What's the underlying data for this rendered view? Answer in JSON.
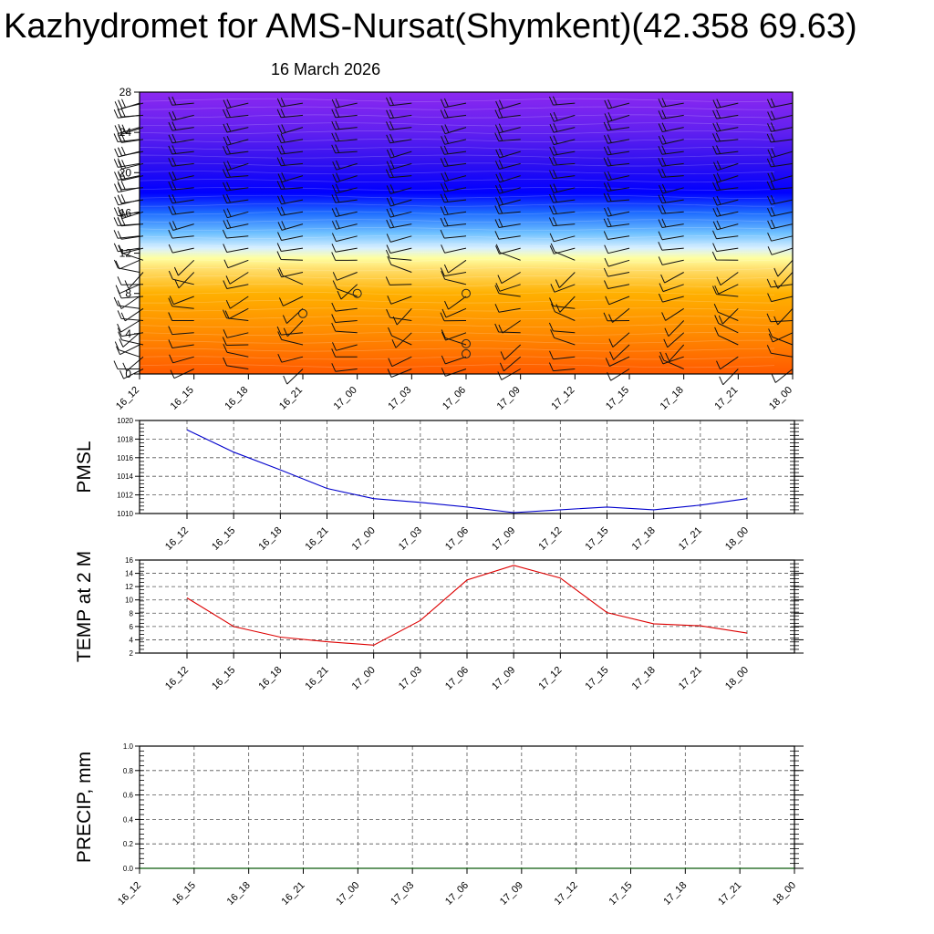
{
  "title": "Kazhydromet for AMS-Nursat(Shymkent)(42.358 69.63)",
  "subtitle": "16 March 2026",
  "colors": {
    "pmsl_line": "#0000cc",
    "temp_line": "#dd0000",
    "precip_line": "#006400"
  },
  "chart_data": [
    {
      "type": "heatmap",
      "name": "cross-section",
      "x": [
        "16_12",
        "16_15",
        "16_18",
        "16_21",
        "17_00",
        "17_03",
        "17_06",
        "17_09",
        "17_12",
        "17_15",
        "17_18",
        "17_21",
        "18_00"
      ],
      "y_ticks": [
        0,
        4,
        8,
        12,
        16,
        20,
        24,
        28
      ],
      "ylim": [
        0,
        28
      ],
      "gradient_stops": [
        {
          "level": 0,
          "color": "#ff5a00"
        },
        {
          "level": 4,
          "color": "#ff8a00"
        },
        {
          "level": 8,
          "color": "#ffb000"
        },
        {
          "level": 10.5,
          "color": "#ffe070"
        },
        {
          "level": 11.5,
          "color": "#ffffa0"
        },
        {
          "level": 12.5,
          "color": "#d8f0ff"
        },
        {
          "level": 14,
          "color": "#6ec0ff"
        },
        {
          "level": 16,
          "color": "#1e6cff"
        },
        {
          "level": 18,
          "color": "#0000ff"
        },
        {
          "level": 21,
          "color": "#3010f0"
        },
        {
          "level": 24,
          "color": "#6020f0"
        },
        {
          "level": 28,
          "color": "#8c28f0"
        }
      ],
      "calm_markers": [
        {
          "x": "16_21",
          "y": 6
        },
        {
          "x": "17_00",
          "y": 8
        },
        {
          "x": "17_06",
          "y": 8
        },
        {
          "x": "17_06",
          "y": 3
        },
        {
          "x": "17_06",
          "y": 2
        }
      ]
    },
    {
      "type": "line",
      "name": "pmsl",
      "ylabel": "PMSL",
      "x": [
        "16_12",
        "16_15",
        "16_18",
        "16_21",
        "17_00",
        "17_03",
        "17_06",
        "17_09",
        "17_12",
        "17_15",
        "17_18",
        "17_21",
        "18_00"
      ],
      "values": [
        1019.0,
        1016.6,
        1014.7,
        1012.7,
        1011.6,
        1011.2,
        1010.7,
        1010.1,
        1010.4,
        1010.7,
        1010.4,
        1010.9,
        1011.6
      ],
      "y_ticks": [
        1010,
        1012,
        1014,
        1016,
        1018,
        1020
      ],
      "ylim": [
        1010,
        1020
      ]
    },
    {
      "type": "line",
      "name": "temp",
      "ylabel": "TEMP at 2 M",
      "x": [
        "16_12",
        "16_15",
        "16_18",
        "16_21",
        "17_00",
        "17_03",
        "17_06",
        "17_09",
        "17_12",
        "17_15",
        "17_18",
        "17_21",
        "18_00"
      ],
      "values": [
        10.3,
        6.0,
        4.4,
        3.7,
        3.2,
        6.9,
        13.0,
        15.2,
        13.3,
        8.1,
        6.4,
        6.1,
        5.0
      ],
      "y_ticks": [
        2,
        4,
        6,
        8,
        10,
        12,
        14,
        16
      ],
      "ylim": [
        2,
        16
      ]
    },
    {
      "type": "line",
      "name": "precip",
      "ylabel": "PRECIP, mm",
      "x": [
        "16_12",
        "16_15",
        "16_18",
        "16_21",
        "17_00",
        "17_03",
        "17_06",
        "17_09",
        "17_12",
        "17_15",
        "17_18",
        "17_21",
        "18_00"
      ],
      "values": [
        0,
        0,
        0,
        0,
        0,
        0,
        0,
        0,
        0,
        0,
        0,
        0,
        0
      ],
      "y_ticks": [
        "0.0",
        "0.2",
        "0.4",
        "0.6",
        "0.8",
        "1.0"
      ],
      "ylim": [
        0,
        1
      ]
    }
  ]
}
